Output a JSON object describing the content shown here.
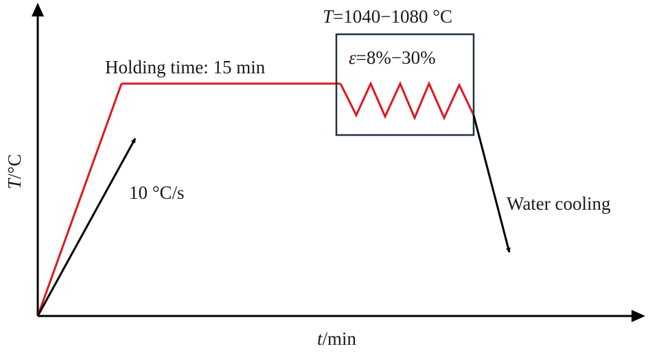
{
  "diagram": {
    "y_axis_symbol": "T",
    "y_axis_unit": "/°C",
    "x_axis_symbol": "t",
    "x_axis_unit": "/min",
    "holding_label": "Holding time: 15 min",
    "heating_rate_label": "10 °C/s",
    "temperature_symbol": "T",
    "temperature_range": "=1040−1080 °C",
    "strain_symbol": "ε",
    "strain_range": "=8%−30%",
    "cooling_label": "Water cooling",
    "colors": {
      "curve": "#e0161e",
      "box": "#1f3140",
      "axes": "#000000",
      "arrows": "#000000"
    }
  }
}
